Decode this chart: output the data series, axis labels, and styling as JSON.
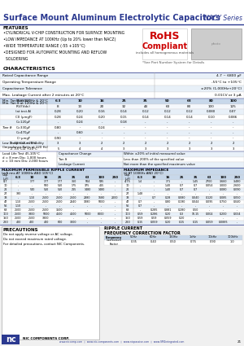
{
  "title": "Surface Mount Aluminum Electrolytic Capacitors",
  "series": "NACY Series",
  "features": [
    "FEATURES",
    "•CYLINDRICAL V-CHIP CONSTRUCTION FOR SURFACE MOUNTING",
    "•LOW IMPEDANCE AT 100KHz (Up to 20% lower than NACZ)",
    "•WIDE TEMPERATURE RANGE (-55 +105°C)",
    "•DESIGNED FOR AUTOMATIC MOUNTING AND REFLOW",
    "  SOLDERING"
  ],
  "rohs_line1": "RoHS",
  "rohs_line2": "Compliant",
  "rohs_sub": "includes all homogeneous materials",
  "part_note": "*See Part Number System for Details",
  "char_title": "CHARACTERISTICS",
  "char_table": [
    [
      "Rated Capacitance Range",
      "4.7 ~ 6800 μF"
    ],
    [
      "Operating Temperature Range",
      "-55°C to +105°C"
    ],
    [
      "Capacitance Tolerance",
      "±20% (1,000Hz+20°C)"
    ],
    [
      "Max. Leakage Current after 2 minutes at 20°C",
      "0.01CV or 3 μA"
    ]
  ],
  "tan_label": "Min. Tan δ at 120Hz & 20°C",
  "tan_b_label": "Tan δ",
  "wv_row": [
    "WV(Vdc)",
    "6.3",
    "10",
    "16",
    "25",
    "35",
    "50",
    "63",
    "80",
    "100"
  ],
  "rv_row": [
    "R.V(Vdc)",
    "8",
    "13",
    "20",
    "32",
    "44",
    "63",
    "80",
    "100",
    "125"
  ],
  "at_test_row": [
    "(at test A)",
    "0.28",
    "0.20",
    "0.16",
    "0.14",
    "0.12",
    "0.12",
    "0.12",
    "0.080",
    "0.07"
  ],
  "tan_b_rows": [
    [
      "C0 (μmgF)",
      "0.28",
      "0.24",
      "0.20",
      "0.15",
      "0.14",
      "0.14",
      "0.14",
      "0.10",
      "0.086"
    ],
    [
      "C=120μF",
      "-",
      "0.24",
      "-",
      "0.18",
      "-",
      "-",
      "-",
      "-",
      "-"
    ],
    [
      "C=330μF",
      "0.80",
      "-",
      "0.24",
      "-",
      "-",
      "-",
      "-",
      "-",
      "-"
    ],
    [
      "C=470μF",
      "-",
      "0.60",
      "-",
      "-",
      "-",
      "-",
      "-",
      "-",
      "-"
    ],
    [
      "C~μmgF",
      "0.90",
      "-",
      "-",
      "-",
      "-",
      "-",
      "-",
      "-",
      "-"
    ]
  ],
  "low_temp_label": "Low Temperature Stability\n(Impedance Ratio at 120 Hz)",
  "low_temp_rows": [
    [
      "Z -40°C/Z +20°C",
      "3",
      "3",
      "2",
      "2",
      "2",
      "2",
      "2",
      "2",
      "2"
    ],
    [
      "Z -55°C/Z +20°C",
      "5",
      "4",
      "4",
      "3",
      "3",
      "3",
      "3",
      "3",
      "3"
    ]
  ],
  "load_life_label": "Load Life Test 45,105°C\nd = 8 mm Dia: 1,000 hours\ne = 10 mm Dia: 2,000 hours",
  "load_life_rows": [
    [
      "Capacitance Change",
      "Within ±20% of initial measured value"
    ],
    [
      "Tan δ",
      "Less than 200% of the specified value"
    ],
    [
      "Leakage Current",
      "Not more than the specified maximum value"
    ]
  ],
  "ripple_title1": "MAXIMUM PERMISSIBLE RIPPLE CURRENT",
  "ripple_title2": "(mA rms AT 100KHz AND 105°C)",
  "imp_title1": "MAXIMUM IMPEDANCE",
  "imp_title2": "(Ω AT 100KHz AND 20°C)",
  "voltage_cols": [
    "6.3",
    "10",
    "16",
    "25",
    "35",
    "63",
    "100",
    "250"
  ],
  "cap_col_label": "Cap.\n(μF)",
  "ripple_rows": [
    [
      "4.7",
      "-",
      "177",
      "177",
      "177",
      "360",
      "504",
      "595",
      "-"
    ],
    [
      "10",
      "-",
      "-",
      "500",
      "510",
      "175",
      "375",
      "415",
      "-"
    ],
    [
      "22",
      "-",
      "540",
      "510",
      "510",
      "215",
      "1480",
      "1480",
      "-"
    ],
    [
      "27",
      "380",
      "-",
      "-",
      "-",
      "-",
      "-",
      "-",
      "-"
    ],
    [
      "33",
      "-",
      "1.10",
      "2500",
      "2500",
      "2500",
      "2880",
      "1680",
      "2000"
    ],
    [
      "47",
      "1.10",
      "2500",
      "2500",
      "2500",
      "2840",
      "3280",
      "5000",
      "-"
    ],
    [
      "56",
      "1.10",
      "-",
      "-",
      "-",
      "-",
      "-",
      "-",
      "-"
    ],
    [
      "68",
      "2500",
      "2500",
      "2500",
      "3500",
      "-",
      "-",
      "-",
      "-"
    ],
    [
      "100",
      "2500",
      "3800",
      "5000",
      "4500",
      "4500",
      "5000",
      "8000",
      "-"
    ],
    [
      "150",
      "2500",
      "2500",
      "3800",
      "-",
      "-",
      "-",
      "-",
      "-"
    ],
    [
      "220",
      "400",
      "400",
      "400",
      "600",
      "3000",
      "-",
      "-",
      "-"
    ]
  ],
  "imp_rows": [
    [
      "4.75",
      "1.4",
      "-",
      "171",
      "-",
      "1.45",
      "2700",
      "3.660",
      "3.480"
    ],
    [
      "10",
      "-",
      "-",
      "1.40",
      "0.7",
      "0.7",
      "0.054",
      "3.000",
      "2.600"
    ],
    [
      "22",
      "-",
      "-",
      "1.40",
      "0.7",
      "0.7",
      "-",
      "0.080",
      "0.090"
    ],
    [
      "27",
      "1.48",
      "-",
      "-",
      "-",
      "-",
      "-",
      "-",
      "-"
    ],
    [
      "33",
      "-",
      "0.7",
      "0.28",
      "0.080",
      "0.040",
      "0.120",
      "0.085",
      "0.050"
    ],
    [
      "47",
      "0.7",
      "-",
      "0.80",
      "0.190",
      "0.044",
      "0.095",
      "0.750",
      "0.040"
    ],
    [
      "56",
      "0.7",
      "-",
      "-",
      "-",
      "-",
      "-",
      "-",
      "-"
    ],
    [
      "68",
      "-",
      "0.285",
      "0.881",
      "0.280",
      "0.50",
      "-",
      "-",
      "-"
    ],
    [
      "100",
      "0.59",
      "0.286",
      "0.20",
      "0.3",
      "10.15",
      "0.004",
      "0.200",
      "0.034"
    ],
    [
      "150",
      "0.59",
      "0.59",
      "0.059",
      "0.20",
      "-",
      "-",
      "-",
      "-"
    ],
    [
      "220",
      "0.15",
      "0.059",
      "0.20",
      "0.15",
      "0.15",
      "0.059",
      "0.0885",
      "-"
    ]
  ],
  "precautions_title": "PRECAUTIONS",
  "precautions_lines": [
    "Do not apply reverse voltage or AC voltage.",
    "Do not exceed maximum rated voltage.",
    "For detailed precautions, contact NIC Components."
  ],
  "ripple_freq_title": "RIPPLE CURRENT",
  "ripple_freq_title2": "FREQUENCY CORRECTION FACTOR",
  "freq_header": [
    "Frequency",
    "50Hz",
    "60Hz",
    "120Hz",
    "1kHz",
    "10kHz",
    "100kHz"
  ],
  "freq_values": [
    "Correction\nFactor",
    "0.35",
    "0.40",
    "0.50",
    "0.75",
    "0.90",
    "1.0"
  ],
  "footer_company": "NIC COMPONENTS CORP.",
  "footer_web": "www.niccomp.com  ◊  www.nic-components.com  ◊  www.nicpassive.com  ◊  www.SM1integrated.com",
  "page_num": "21",
  "bg_color": "#ffffff",
  "header_blue": "#2b3990",
  "line_blue": "#2b3990",
  "table_blue_bg": "#c8d8ea",
  "table_alt_bg": "#e8f0f8",
  "text_black": "#000000",
  "rohs_red": "#cc0000"
}
